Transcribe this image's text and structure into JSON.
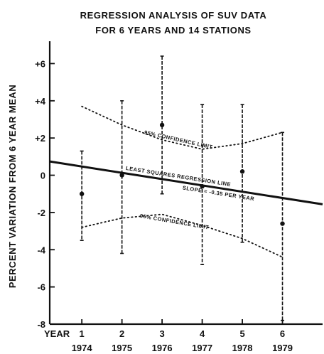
{
  "chart_data": {
    "type": "scatter",
    "title": "REGRESSION ANALYSIS OF SUV DATA",
    "subtitle": "FOR 6 YEARS AND 14 STATIONS",
    "ylabel": "PERCENT VARIATION FROM 6 YEAR MEAN",
    "x_prefix": "YEAR",
    "xlim": [
      0.2,
      7.0
    ],
    "ylim": [
      -8,
      7.2
    ],
    "x_ticks": [
      1,
      2,
      3,
      4,
      5,
      6
    ],
    "year_labels": [
      "1974",
      "1975",
      "1976",
      "1977",
      "1978",
      "1979"
    ],
    "y_ticks": [
      {
        "value": 6,
        "label": "+6"
      },
      {
        "value": 4,
        "label": "+4"
      },
      {
        "value": 2,
        "label": "+2"
      },
      {
        "value": 0,
        "label": "0"
      },
      {
        "value": -2,
        "label": "-2"
      },
      {
        "value": -4,
        "label": "-4"
      },
      {
        "value": -6,
        "label": "-6"
      },
      {
        "value": -8,
        "label": "-8"
      }
    ],
    "points": [
      {
        "x": 1,
        "y": -1.0,
        "err_high": 1.3,
        "err_low": -3.5
      },
      {
        "x": 2,
        "y": 0.0,
        "err_high": 4.0,
        "err_low": -4.2
      },
      {
        "x": 3,
        "y": 2.7,
        "err_high": 6.4,
        "err_low": -1.0
      },
      {
        "x": 4,
        "y": -0.6,
        "err_high": 3.8,
        "err_low": -4.8
      },
      {
        "x": 5,
        "y": 0.2,
        "err_high": 3.8,
        "err_low": -3.6
      },
      {
        "x": 6,
        "y": -2.6,
        "err_high": 2.3,
        "err_low": -7.8
      }
    ],
    "regression_line": {
      "x": [
        0.2,
        7.0
      ],
      "y": [
        0.74,
        -1.56
      ],
      "label": "LEAST SQUARES REGRESSION LINE",
      "slope_label": "SLOPE = -0.35 PER YEAR"
    },
    "upper_confidence": {
      "label": "95% CONFIDENCE LIMIT",
      "x": [
        1.0,
        2.0,
        3.0,
        4.0,
        5.0,
        6.0
      ],
      "y": [
        3.7,
        2.7,
        1.9,
        1.4,
        1.7,
        2.3
      ]
    },
    "lower_confidence": {
      "label": "95% CONFIDENCE LIMIT",
      "x": [
        1.0,
        2.0,
        3.0,
        4.0,
        5.0,
        6.0
      ],
      "y": [
        -2.8,
        -2.3,
        -2.1,
        -2.7,
        -3.4,
        -4.4
      ]
    }
  }
}
